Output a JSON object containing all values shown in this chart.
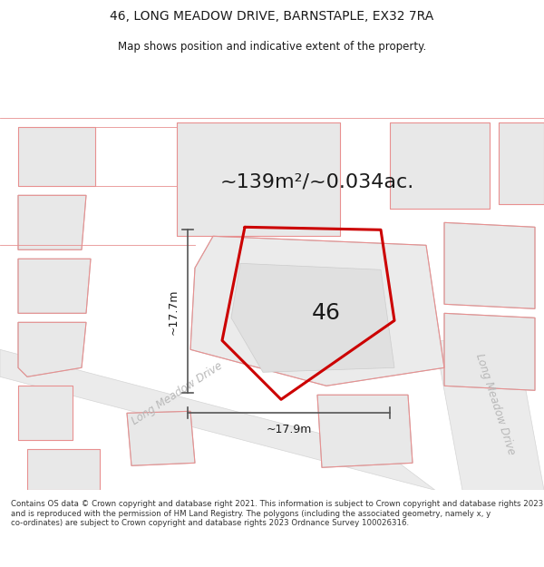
{
  "title_line1": "46, LONG MEADOW DRIVE, BARNSTAPLE, EX32 7RA",
  "title_line2": "Map shows position and indicative extent of the property.",
  "area_text": "~139m²/~0.034ac.",
  "number_label": "46",
  "dim_vertical": "~17.7m",
  "dim_horizontal": "~17.9m",
  "road_label1": "Long Meadow Drive",
  "road_label2": "Long Meadow Drive",
  "footer": "Contains OS data © Crown copyright and database right 2021. This information is subject to Crown copyright and database rights 2023 and is reproduced with the permission of HM Land Registry. The polygons (including the associated geometry, namely x, y co-ordinates) are subject to Crown copyright and database rights 2023 Ordnance Survey 100026316.",
  "bg_color": "#ffffff",
  "boundary_color": "#cc0000",
  "dim_line_color": "#555555",
  "text_color_dark": "#1a1a1a",
  "plot_fill": "#e8e8e8",
  "plot_edge": "#c0c0c0",
  "road_fill": "#eeeeee",
  "red_line_color": "#e89090",
  "title_fontsize": 10,
  "subtitle_fontsize": 8.5,
  "area_fontsize": 16,
  "number_fontsize": 18,
  "dim_fontsize": 9,
  "road_fontsize": 8.5,
  "footer_fontsize": 6.2
}
